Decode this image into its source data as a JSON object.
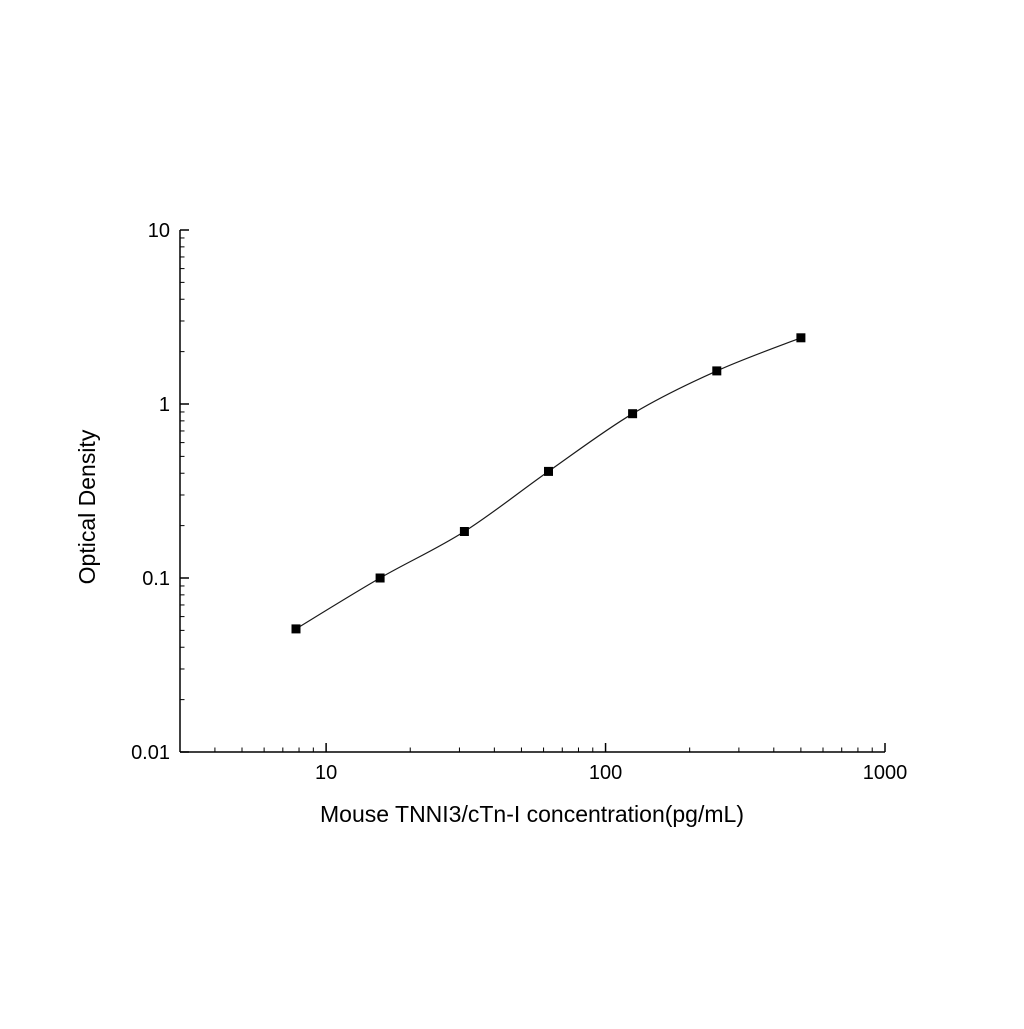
{
  "chart_data": {
    "type": "line",
    "title": "",
    "xlabel": "Mouse TNNI3/cTn-I concentration(pg/mL)",
    "ylabel": "Optical Density",
    "x": [
      7.8,
      15.6,
      31.25,
      62.5,
      125,
      250,
      500
    ],
    "y": [
      0.051,
      0.1,
      0.185,
      0.41,
      0.88,
      1.55,
      2.4
    ],
    "xscale": "log",
    "yscale": "log",
    "xlim": [
      3,
      1000
    ],
    "ylim": [
      0.01,
      10
    ],
    "x_major_ticks": [
      10,
      100,
      1000
    ],
    "x_tick_labels": [
      "10",
      "100",
      "1000"
    ],
    "y_major_ticks": [
      0.01,
      0.1,
      1,
      10
    ],
    "y_tick_labels": [
      "0.01",
      "0.1",
      "1",
      "10"
    ],
    "marker": "square",
    "marker_color": "#000000",
    "line_color": "#1a1a1a",
    "axis_color": "#000000",
    "grid": false,
    "legend": false
  }
}
